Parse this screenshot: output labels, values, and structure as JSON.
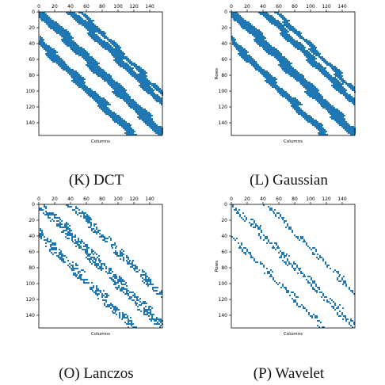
{
  "figure": {
    "colors": {
      "mark": "#1f77b4",
      "axis": "#000000",
      "background": "#ffffff"
    }
  },
  "chart_data": [
    {
      "type": "heatmap",
      "plot_style": "matplotlib spy (sparsity pattern)",
      "caption": "(K) DCT",
      "xlabel": "Columns",
      "ylabel": "",
      "x_axis_position": "top",
      "rows": 156,
      "cols": 156,
      "xticks": [
        0,
        20,
        40,
        60,
        80,
        100,
        120,
        140
      ],
      "yticks": [
        0,
        20,
        40,
        60,
        80,
        100,
        120,
        140
      ],
      "pattern": "dense",
      "bands": [
        {
          "col_offset": 0,
          "width": 14
        },
        {
          "col_offset": 40,
          "width": 10
        },
        {
          "col_offset": -38,
          "width": 12
        },
        {
          "col_offset": 52,
          "width": 6
        }
      ]
    },
    {
      "type": "heatmap",
      "plot_style": "matplotlib spy (sparsity pattern)",
      "caption": "(L) Gaussian",
      "xlabel": "Columns",
      "ylabel": "Rows",
      "x_axis_position": "top",
      "rows": 156,
      "cols": 156,
      "xticks": [
        0,
        20,
        40,
        60,
        80,
        100,
        120,
        140
      ],
      "yticks": [
        0,
        20,
        40,
        60,
        80,
        100,
        120,
        140
      ],
      "pattern": "dense",
      "bands": [
        {
          "col_offset": 0,
          "width": 14
        },
        {
          "col_offset": 40,
          "width": 10
        },
        {
          "col_offset": -38,
          "width": 10
        },
        {
          "col_offset": 56,
          "width": 6
        }
      ]
    },
    {
      "type": "heatmap",
      "plot_style": "matplotlib spy (sparsity pattern)",
      "caption": "(O) Lanczos",
      "xlabel": "Columns",
      "ylabel": "",
      "x_axis_position": "top",
      "rows": 156,
      "cols": 156,
      "xticks": [
        0,
        20,
        40,
        60,
        80,
        100,
        120,
        140
      ],
      "yticks": [
        0,
        20,
        40,
        60,
        80,
        100,
        120,
        140
      ],
      "pattern": "speckled",
      "bands": [
        {
          "col_offset": 0,
          "width": 14
        },
        {
          "col_offset": 40,
          "width": 10
        },
        {
          "col_offset": -38,
          "width": 12
        }
      ]
    },
    {
      "type": "heatmap",
      "plot_style": "matplotlib spy (sparsity pattern)",
      "caption": "(P) Wavelet",
      "xlabel": "Columns",
      "ylabel": "Rows",
      "x_axis_position": "top",
      "rows": 156,
      "cols": 156,
      "xticks": [
        0,
        20,
        40,
        60,
        80,
        100,
        120,
        140
      ],
      "yticks": [
        0,
        20,
        40,
        60,
        80,
        100,
        120,
        140
      ],
      "pattern": "blocky",
      "bands": [
        {
          "col_offset": 0,
          "width": 10
        },
        {
          "col_offset": 44,
          "width": 6
        },
        {
          "col_offset": -40,
          "width": 6
        }
      ]
    }
  ]
}
